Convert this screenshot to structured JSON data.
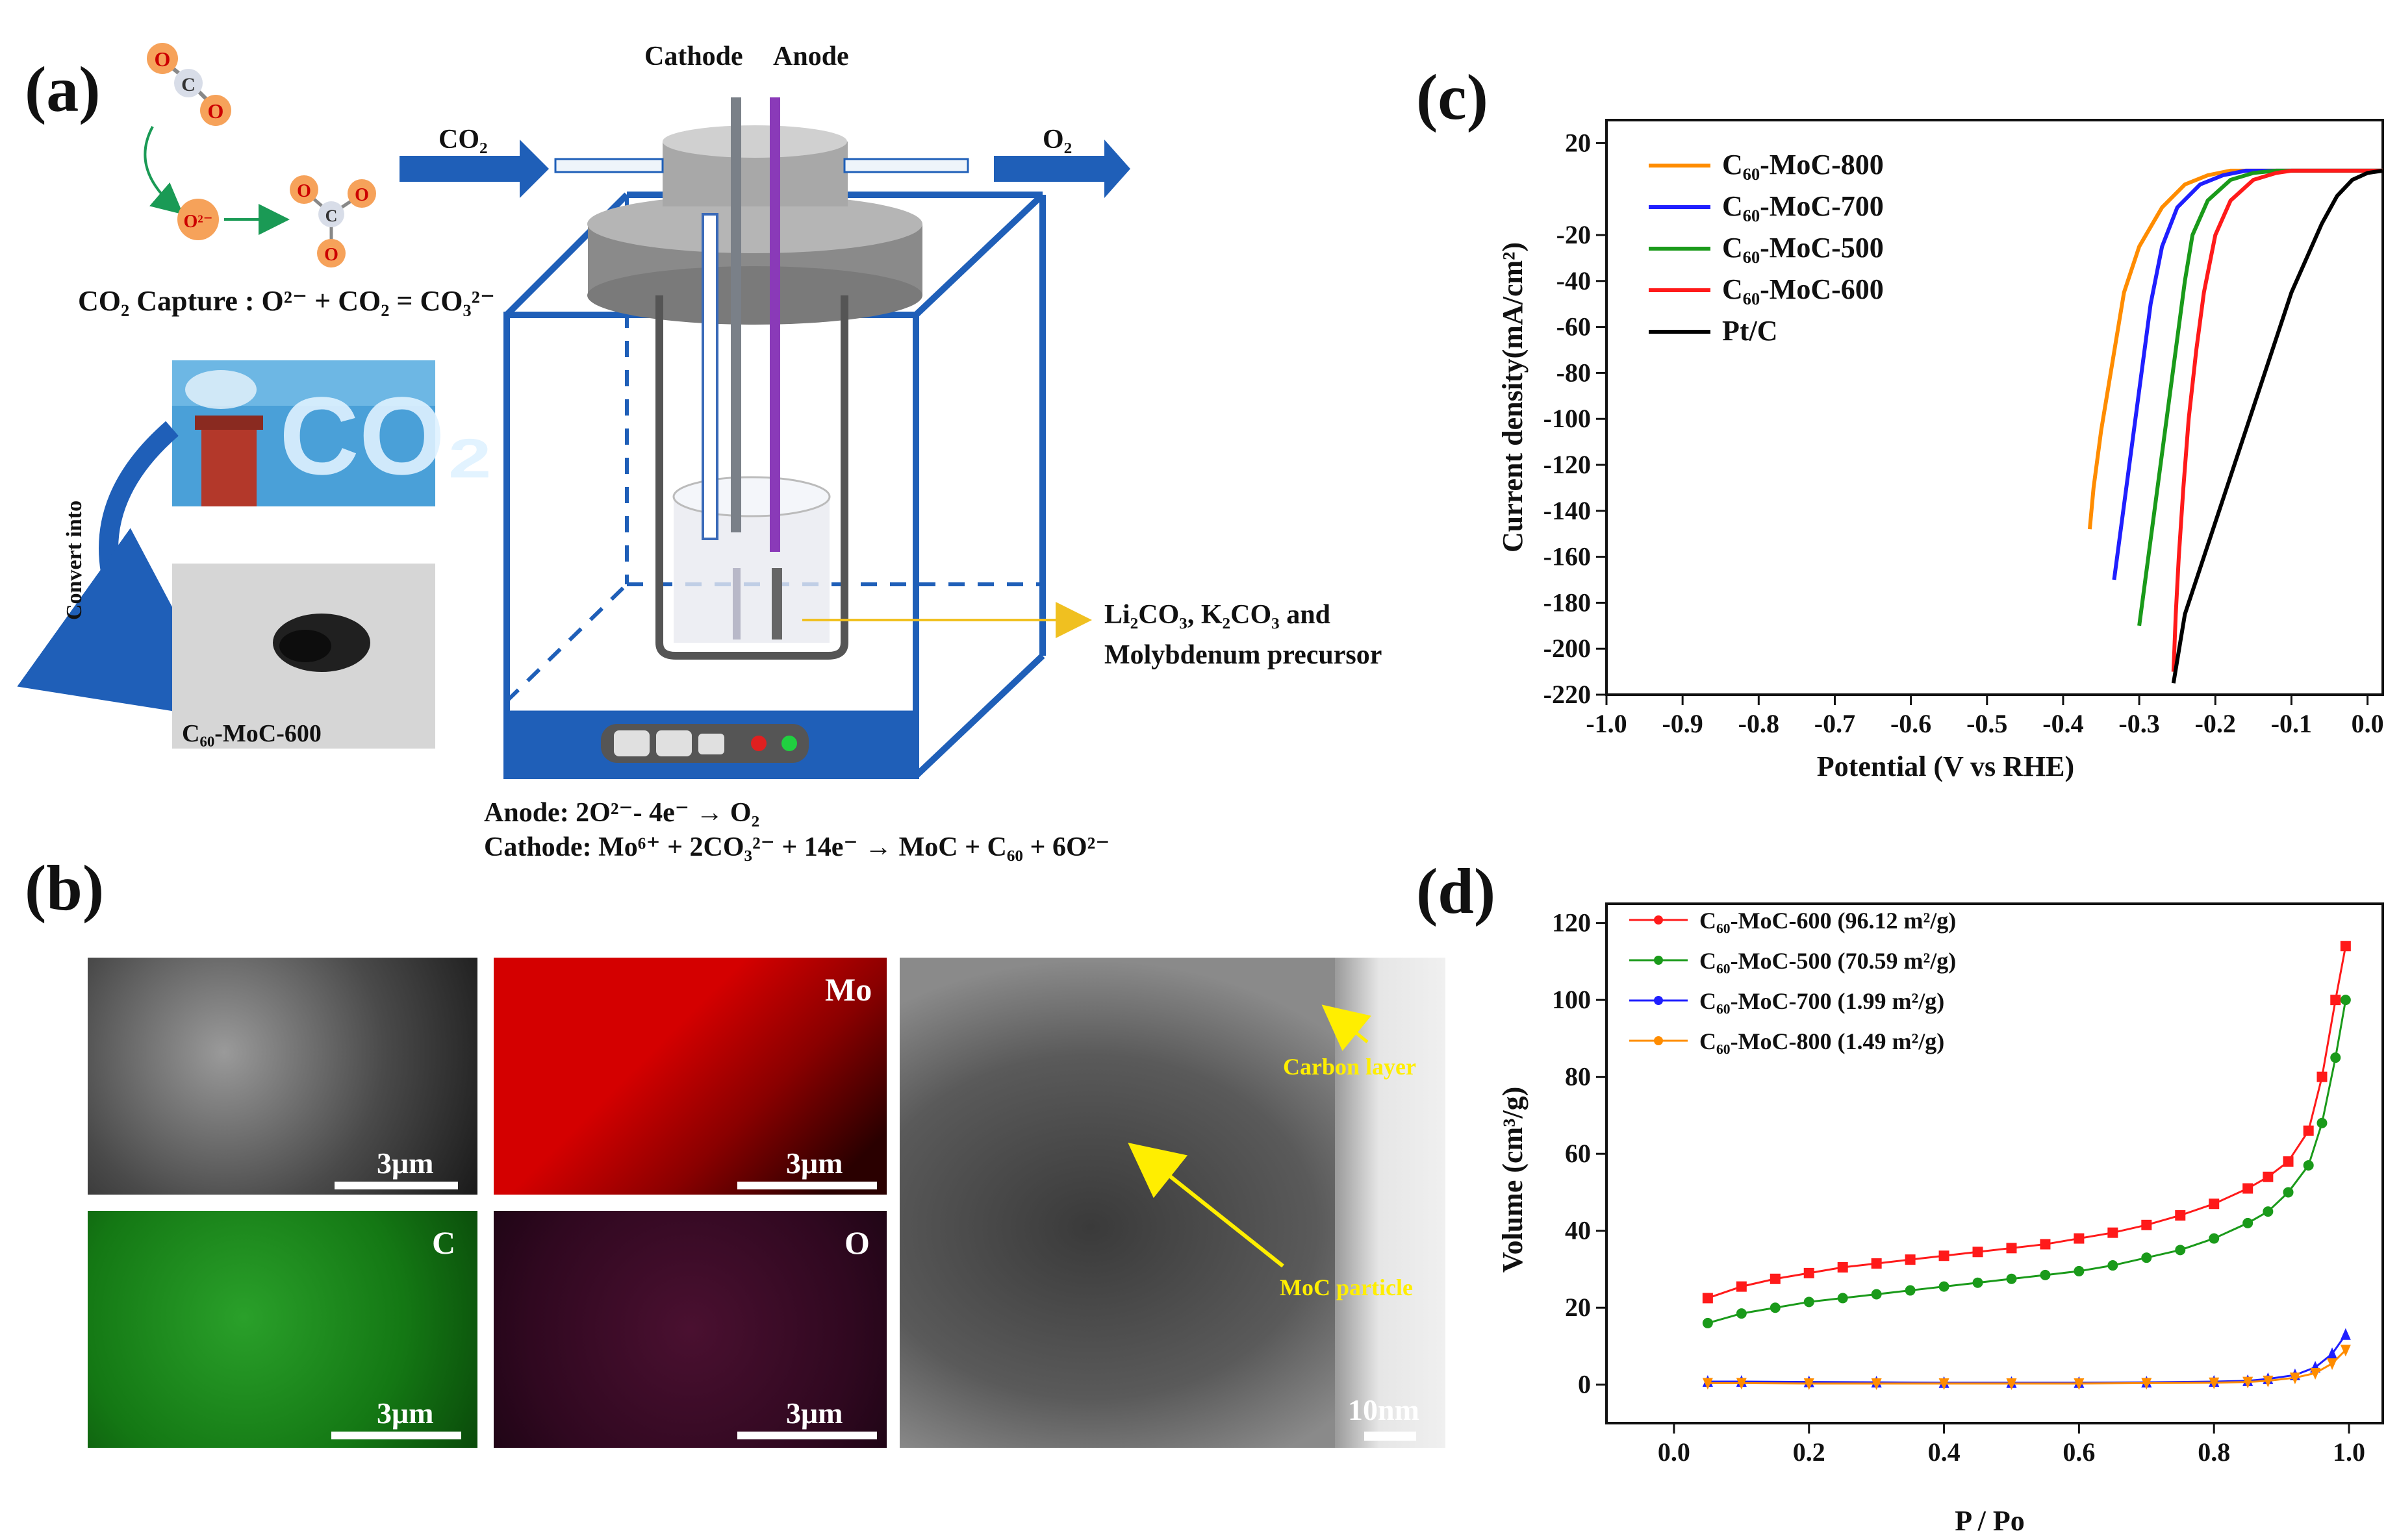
{
  "panels": {
    "a": "(a)",
    "b": "(b)",
    "c": "(c)",
    "d": "(d)"
  },
  "panel_a": {
    "cathode": "Cathode",
    "anode": "Anode",
    "co2_in": "CO₂",
    "o2_out": "O₂",
    "capture_eq": "CO₂ Capture : O²⁻ + CO₂ = CO₃²⁻",
    "convert": "Convert into",
    "photo_co2": "CO₂",
    "product": "C₆₀-MoC-600",
    "electrolyte_1": "Li₂CO₃, K₂CO₃ and",
    "electrolyte_2": "Molybdenum precursor",
    "anode_rxn": "Anode:    2O²⁻- 4e⁻ → O₂",
    "cathode_rxn": "Cathode: Mo⁶⁺ + 2CO₃²⁻ + 14e⁻ → MoC + C₆₀ + 6O²⁻",
    "atom_o": "O",
    "atom_c": "C",
    "ion_o2": "O²⁻"
  },
  "panel_b": {
    "tiles": [
      {
        "label": "",
        "scale": "3μm",
        "color": "#6a6a6a"
      },
      {
        "label": "Mo",
        "scale": "3μm",
        "color": "#c80000"
      },
      {
        "label": "C",
        "scale": "3μm",
        "color": "#1a8a1a"
      },
      {
        "label": "O",
        "scale": "3μm",
        "color": "#3a0a22"
      }
    ],
    "tem_scale": "10nm",
    "tem_carbon": "Carbon layer",
    "tem_particle": "MoC particle"
  },
  "chart_data": [
    {
      "type": "line",
      "panel": "c",
      "xlabel": "Potential (V vs RHE)",
      "ylabel": "Current density(mA/cm²)",
      "xlim": [
        -1.0,
        0.02
      ],
      "ylim": [
        -220,
        30
      ],
      "xticks": [
        -1.0,
        -0.9,
        -0.8,
        -0.7,
        -0.6,
        -0.5,
        -0.4,
        -0.3,
        -0.2,
        -0.1,
        0.0
      ],
      "xtick_labels": [
        "-1.0",
        "-0.9",
        "-0.8",
        "-0.7",
        "-0.6",
        "-0.5",
        "-0.4",
        "-0.3",
        "-0.2",
        "-0.1",
        "0.0"
      ],
      "yticks": [
        20,
        -20,
        -40,
        -60,
        -80,
        -100,
        -120,
        -140,
        -160,
        -180,
        -200,
        -220
      ],
      "ytick_labels": [
        "20",
        "-20",
        "-40",
        "-60",
        "-80",
        "-100",
        "-120",
        "-140",
        "-160",
        "-180",
        "-200",
        "-220"
      ],
      "legend": "top-left",
      "series": [
        {
          "name": "C₆₀-MoC-800",
          "color": "#ff8c00",
          "x": [
            -0.365,
            -0.36,
            -0.35,
            -0.34,
            -0.33,
            -0.32,
            -0.3,
            -0.27,
            -0.24,
            -0.21,
            -0.18,
            -0.15,
            -0.1,
            0.02
          ],
          "y": [
            -148,
            -130,
            -105,
            -85,
            -65,
            -45,
            -25,
            -8,
            2,
            6,
            8,
            8,
            8,
            8
          ]
        },
        {
          "name": "C₆₀-MoC-700",
          "color": "#1f1fff",
          "x": [
            -0.333,
            -0.325,
            -0.315,
            -0.305,
            -0.295,
            -0.285,
            -0.27,
            -0.25,
            -0.22,
            -0.19,
            -0.16,
            -0.13,
            -0.1,
            0.02
          ],
          "y": [
            -170,
            -150,
            -125,
            -100,
            -75,
            -50,
            -25,
            -8,
            2,
            6,
            8,
            8,
            8,
            8
          ]
        },
        {
          "name": "C₆₀-MoC-500",
          "color": "#1a9a1a",
          "x": [
            -0.3,
            -0.29,
            -0.28,
            -0.27,
            -0.26,
            -0.25,
            -0.24,
            -0.23,
            -0.21,
            -0.18,
            -0.15,
            -0.12,
            -0.1,
            0.02
          ],
          "y": [
            -190,
            -165,
            -140,
            -115,
            -90,
            -65,
            -40,
            -20,
            -5,
            4,
            7,
            8,
            8,
            8
          ]
        },
        {
          "name": "C₆₀-MoC-600",
          "color": "#ff1a1a",
          "x": [
            -0.255,
            -0.252,
            -0.248,
            -0.242,
            -0.235,
            -0.225,
            -0.215,
            -0.2,
            -0.18,
            -0.15,
            -0.12,
            -0.1,
            0.02
          ],
          "y": [
            -210,
            -185,
            -160,
            -130,
            -100,
            -70,
            -45,
            -20,
            -5,
            4,
            7,
            8,
            8
          ]
        },
        {
          "name": "Pt/C",
          "color": "#000000",
          "x": [
            -0.255,
            -0.24,
            -0.22,
            -0.2,
            -0.18,
            -0.16,
            -0.14,
            -0.12,
            -0.1,
            -0.08,
            -0.06,
            -0.04,
            -0.02,
            0.0,
            0.02
          ],
          "y": [
            -215,
            -185,
            -165,
            -145,
            -125,
            -105,
            -85,
            -65,
            -45,
            -30,
            -15,
            -3,
            4,
            7,
            8
          ]
        }
      ]
    },
    {
      "type": "line",
      "panel": "d",
      "xlabel": "P / Po",
      "ylabel": "Volume (cm³/g)",
      "xlim": [
        -0.1,
        1.05
      ],
      "ylim": [
        -10,
        125
      ],
      "xticks": [
        0.0,
        0.2,
        0.4,
        0.6,
        0.8,
        1.0
      ],
      "xtick_labels": [
        "0.0",
        "0.2",
        "0.4",
        "0.6",
        "0.8",
        "1.0"
      ],
      "yticks": [
        0,
        20,
        40,
        60,
        80,
        100,
        120
      ],
      "ytick_labels": [
        "0",
        "20",
        "40",
        "60",
        "80",
        "100",
        "120"
      ],
      "legend": "top-left",
      "series": [
        {
          "name": "C₆₀-MoC-600 (96.12 m²/g)",
          "color": "#ff1a1a",
          "marker": "square",
          "x": [
            0.05,
            0.1,
            0.15,
            0.2,
            0.25,
            0.3,
            0.35,
            0.4,
            0.45,
            0.5,
            0.55,
            0.6,
            0.65,
            0.7,
            0.75,
            0.8,
            0.85,
            0.88,
            0.91,
            0.94,
            0.96,
            0.98,
            0.995
          ],
          "y": [
            22.5,
            25.5,
            27.5,
            29,
            30.5,
            31.5,
            32.5,
            33.5,
            34.5,
            35.5,
            36.5,
            38,
            39.5,
            41.5,
            44,
            47,
            51,
            54,
            58,
            66,
            80,
            100,
            114
          ]
        },
        {
          "name": "C₆₀-MoC-500 (70.59 m²/g)",
          "color": "#1a9a1a",
          "marker": "circle",
          "x": [
            0.05,
            0.1,
            0.15,
            0.2,
            0.25,
            0.3,
            0.35,
            0.4,
            0.45,
            0.5,
            0.55,
            0.6,
            0.65,
            0.7,
            0.75,
            0.8,
            0.85,
            0.88,
            0.91,
            0.94,
            0.96,
            0.98,
            0.995
          ],
          "y": [
            16,
            18.5,
            20,
            21.5,
            22.5,
            23.5,
            24.5,
            25.5,
            26.5,
            27.5,
            28.5,
            29.5,
            31,
            33,
            35,
            38,
            42,
            45,
            50,
            57,
            68,
            85,
            100
          ]
        },
        {
          "name": "C₆₀-MoC-700 (1.99 m²/g)",
          "color": "#1f1fff",
          "marker": "triangle-up",
          "x": [
            0.05,
            0.1,
            0.2,
            0.3,
            0.4,
            0.5,
            0.6,
            0.7,
            0.8,
            0.85,
            0.88,
            0.92,
            0.95,
            0.975,
            0.995
          ],
          "y": [
            0.8,
            0.8,
            0.7,
            0.6,
            0.5,
            0.5,
            0.5,
            0.6,
            0.8,
            1.0,
            1.5,
            2.5,
            4.5,
            8,
            13
          ]
        },
        {
          "name": "C₆₀-MoC-800 (1.49 m²/g)",
          "color": "#ff8c00",
          "marker": "triangle-down",
          "x": [
            0.05,
            0.1,
            0.2,
            0.3,
            0.4,
            0.5,
            0.6,
            0.7,
            0.8,
            0.85,
            0.88,
            0.92,
            0.95,
            0.975,
            0.995
          ],
          "y": [
            0.4,
            0.4,
            0.3,
            0.3,
            0.3,
            0.3,
            0.3,
            0.4,
            0.5,
            0.7,
            1.0,
            1.8,
            3.0,
            5.5,
            9
          ]
        }
      ]
    }
  ]
}
